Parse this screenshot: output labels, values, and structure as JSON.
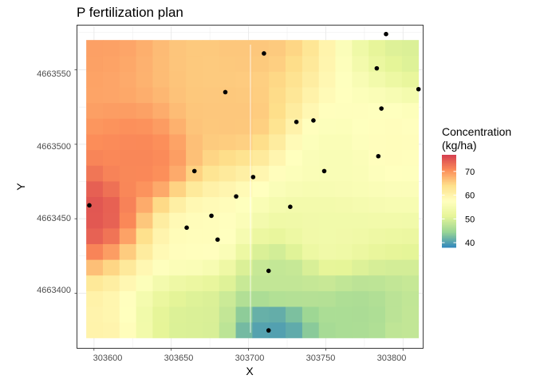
{
  "chart_data": {
    "type": "heatmap",
    "title": "P fertilization plan",
    "xlabel": "X",
    "ylabel": "Y",
    "xlim": [
      303589,
      303813
    ],
    "ylim": [
      4663363,
      4663580
    ],
    "x_ticks": [
      "303600",
      "303650",
      "303700",
      "303750",
      "303800"
    ],
    "y_ticks": [
      "4663400",
      "4663450",
      "4663500",
      "4663550"
    ],
    "grid": true,
    "raster": {
      "x_min": 303595,
      "x_max": 303810,
      "y_min": 4663370,
      "y_max": 4663570,
      "n_cols": 20,
      "n_rows": 19,
      "control_points": [
        {
          "x": 303595,
          "y": 4663570,
          "value": 69
        },
        {
          "x": 303700,
          "y": 4663570,
          "value": 66
        },
        {
          "x": 303810,
          "y": 4663570,
          "value": 50
        },
        {
          "x": 303595,
          "y": 4663455,
          "value": 75
        },
        {
          "x": 303630,
          "y": 4663490,
          "value": 71
        },
        {
          "x": 303690,
          "y": 4663520,
          "value": 66
        },
        {
          "x": 303760,
          "y": 4663490,
          "value": 56
        },
        {
          "x": 303790,
          "y": 4663500,
          "value": 58
        },
        {
          "x": 303670,
          "y": 4663440,
          "value": 58
        },
        {
          "x": 303750,
          "y": 4663440,
          "value": 54
        },
        {
          "x": 303595,
          "y": 4663370,
          "value": 60
        },
        {
          "x": 303665,
          "y": 4663380,
          "value": 50
        },
        {
          "x": 303715,
          "y": 4663375,
          "value": 40
        },
        {
          "x": 303770,
          "y": 4663385,
          "value": 46
        },
        {
          "x": 303810,
          "y": 4663375,
          "value": 48
        },
        {
          "x": 303720,
          "y": 4663410,
          "value": 48
        }
      ]
    },
    "points": [
      {
        "x": 303789,
        "y": 4663574
      },
      {
        "x": 303710,
        "y": 4663561
      },
      {
        "x": 303783,
        "y": 4663551
      },
      {
        "x": 303810,
        "y": 4663537
      },
      {
        "x": 303685,
        "y": 4663535
      },
      {
        "x": 303786,
        "y": 4663524
      },
      {
        "x": 303742,
        "y": 4663516
      },
      {
        "x": 303731,
        "y": 4663515
      },
      {
        "x": 303784,
        "y": 4663492
      },
      {
        "x": 303665,
        "y": 4663482
      },
      {
        "x": 303749,
        "y": 4663482
      },
      {
        "x": 303703,
        "y": 4663478
      },
      {
        "x": 303692,
        "y": 4663465
      },
      {
        "x": 303597,
        "y": 4663459
      },
      {
        "x": 303727,
        "y": 4663458
      },
      {
        "x": 303676,
        "y": 4663452
      },
      {
        "x": 303660,
        "y": 4663444
      },
      {
        "x": 303680,
        "y": 4663436
      },
      {
        "x": 303713,
        "y": 4663415
      },
      {
        "x": 303713,
        "y": 4663375
      }
    ],
    "legend": {
      "title_line1": "Concentration",
      "title_line2": "(kg/ha)",
      "range": [
        38,
        77
      ],
      "ticks": [
        "40",
        "50",
        "60",
        "70"
      ],
      "tick_values": [
        40,
        50,
        60,
        70
      ],
      "placement": "right"
    },
    "colorscale": [
      "#3288bd",
      "#99d594",
      "#e6f598",
      "#ffffbf",
      "#fee08b",
      "#fc8d59",
      "#d53e4f"
    ]
  }
}
